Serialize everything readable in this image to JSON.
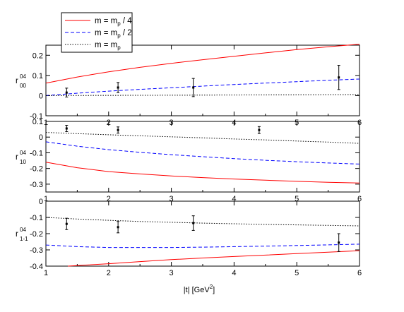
{
  "chart_data": [
    {
      "type": "line",
      "panel_id": "r00",
      "ylabel": {
        "main": "r",
        "sup": "04",
        "sub": "00"
      },
      "xlim": [
        1,
        6
      ],
      "ylim": [
        -0.1,
        0.25
      ],
      "xticks": [
        1,
        2,
        3,
        4,
        5,
        6
      ],
      "yticks": [
        -0.1,
        0,
        0.1,
        0.2
      ],
      "ytick_labels": [
        "-0.1",
        "0",
        "0.1",
        "0.2"
      ],
      "series": [
        {
          "style": "solid",
          "color": "#ff0000",
          "x": [
            1,
            1.5,
            2,
            2.5,
            3,
            3.5,
            4,
            4.5,
            5,
            5.5,
            6
          ],
          "y": [
            0.062,
            0.092,
            0.118,
            0.14,
            0.16,
            0.178,
            0.195,
            0.212,
            0.228,
            0.242,
            0.255
          ]
        },
        {
          "style": "dashed",
          "color": "#0000ff",
          "x": [
            1,
            1.5,
            2,
            2.5,
            3,
            3.5,
            4,
            4.5,
            5,
            5.5,
            6
          ],
          "y": [
            0.0,
            0.012,
            0.022,
            0.031,
            0.039,
            0.047,
            0.055,
            0.062,
            0.069,
            0.076,
            0.082
          ]
        },
        {
          "style": "dotted",
          "color": "#000000",
          "x": [
            1,
            2,
            3,
            4,
            5,
            6
          ],
          "y": [
            0.0,
            0.001,
            0.002,
            0.003,
            0.004,
            0.005
          ]
        }
      ],
      "points": [
        {
          "x": 1.33,
          "y": 0.015,
          "err": 0.022
        },
        {
          "x": 2.15,
          "y": 0.04,
          "err": 0.025
        },
        {
          "x": 3.35,
          "y": 0.04,
          "err": 0.045
        },
        {
          "x": 5.67,
          "y": 0.09,
          "err": 0.06
        }
      ]
    },
    {
      "type": "line",
      "panel_id": "r10",
      "ylabel": {
        "main": "r",
        "sup": "04",
        "sub": "10"
      },
      "xlim": [
        1,
        6
      ],
      "ylim": [
        -0.35,
        0.1
      ],
      "xticks": [
        1,
        2,
        3,
        4,
        5,
        6
      ],
      "yticks": [
        -0.3,
        -0.2,
        -0.1,
        0,
        0.1
      ],
      "ytick_labels": [
        "-0.3",
        "-0.2",
        "-0.1",
        "0",
        "0.1"
      ],
      "series": [
        {
          "style": "solid",
          "color": "#ff0000",
          "x": [
            1,
            1.5,
            2,
            2.5,
            3,
            3.5,
            4,
            4.5,
            5,
            5.5,
            6
          ],
          "y": [
            -0.16,
            -0.195,
            -0.22,
            -0.235,
            -0.248,
            -0.258,
            -0.267,
            -0.275,
            -0.282,
            -0.288,
            -0.293
          ]
        },
        {
          "style": "dashed",
          "color": "#0000ff",
          "x": [
            1,
            1.5,
            2,
            2.5,
            3,
            3.5,
            4,
            4.5,
            5,
            5.5,
            6
          ],
          "y": [
            -0.03,
            -0.058,
            -0.08,
            -0.097,
            -0.112,
            -0.125,
            -0.137,
            -0.148,
            -0.157,
            -0.165,
            -0.172
          ]
        },
        {
          "style": "dotted",
          "color": "#000000",
          "x": [
            1,
            1.5,
            2,
            2.5,
            3,
            3.5,
            4,
            4.5,
            5,
            5.5,
            6
          ],
          "y": [
            0.03,
            0.022,
            0.015,
            0.008,
            0.002,
            -0.005,
            -0.012,
            -0.018,
            -0.025,
            -0.032,
            -0.04
          ]
        }
      ],
      "points": [
        {
          "x": 1.33,
          "y": 0.055,
          "err": 0.02
        },
        {
          "x": 2.15,
          "y": 0.045,
          "err": 0.02
        },
        {
          "x": 4.4,
          "y": 0.045,
          "err": 0.022
        }
      ]
    },
    {
      "type": "line",
      "panel_id": "r1m1",
      "ylabel": {
        "main": "r",
        "sup": "04",
        "sub": "1-1"
      },
      "xlim": [
        1,
        6
      ],
      "ylim": [
        -0.4,
        0.0
      ],
      "xticks": [
        1,
        2,
        3,
        4,
        5,
        6
      ],
      "yticks": [
        -0.4,
        -0.3,
        -0.2,
        -0.1,
        0
      ],
      "ytick_labels": [
        "-0.4",
        "-0.3",
        "-0.2",
        "-0.1",
        "0"
      ],
      "xtick_labels": [
        "1",
        "2",
        "3",
        "4",
        "5",
        "6"
      ],
      "series": [
        {
          "style": "solid",
          "color": "#ff0000",
          "x": [
            1.35,
            2,
            2.5,
            3,
            3.5,
            4,
            4.5,
            5,
            5.5,
            6
          ],
          "y": [
            -0.4,
            -0.385,
            -0.372,
            -0.36,
            -0.35,
            -0.341,
            -0.332,
            -0.323,
            -0.314,
            -0.305
          ]
        },
        {
          "style": "dashed",
          "color": "#0000ff",
          "x": [
            1,
            1.5,
            2,
            2.5,
            3,
            3.5,
            4,
            4.5,
            5,
            5.5,
            6
          ],
          "y": [
            -0.27,
            -0.28,
            -0.285,
            -0.285,
            -0.285,
            -0.283,
            -0.28,
            -0.277,
            -0.273,
            -0.269,
            -0.265
          ]
        },
        {
          "style": "dotted",
          "color": "#000000",
          "x": [
            1,
            1.5,
            2,
            2.5,
            3,
            3.5,
            4,
            4.5,
            5,
            5.5,
            6
          ],
          "y": [
            -0.1,
            -0.11,
            -0.118,
            -0.125,
            -0.13,
            -0.135,
            -0.139,
            -0.143,
            -0.146,
            -0.149,
            -0.152
          ]
        }
      ],
      "points": [
        {
          "x": 1.33,
          "y": -0.14,
          "err": 0.035
        },
        {
          "x": 2.15,
          "y": -0.16,
          "err": 0.035
        },
        {
          "x": 3.35,
          "y": -0.135,
          "err": 0.045
        },
        {
          "x": 5.67,
          "y": -0.255,
          "err": 0.055
        }
      ]
    }
  ],
  "legend": [
    {
      "label": "m = m",
      "sub": "p",
      "suffix": " / 4",
      "style": "solid",
      "color": "#ff0000"
    },
    {
      "label": "m = m",
      "sub": "p",
      "suffix": " / 2",
      "style": "dashed",
      "color": "#0000ff"
    },
    {
      "label": "m = m",
      "sub": "p",
      "suffix": "",
      "style": "dotted",
      "color": "#000000"
    }
  ],
  "xlabel": {
    "main": "|t|    [GeV",
    "sup": "2",
    "tail": "]"
  }
}
